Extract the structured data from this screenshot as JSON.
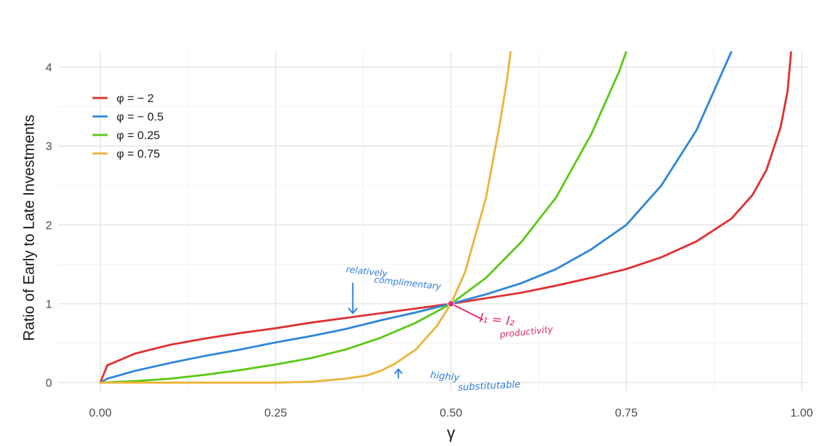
{
  "chart_data": {
    "type": "line",
    "xlabel": "γ",
    "ylabel": "Ratio of Early to Late Investments",
    "xlim": [
      -0.06,
      1.01
    ],
    "ylim": [
      -0.1,
      4.2
    ],
    "xticks": [
      0.0,
      0.25,
      0.5,
      0.75,
      1.0
    ],
    "xtick_labels": [
      "0.00",
      "0.25",
      "0.50",
      "0.75",
      "1.00"
    ],
    "yticks": [
      0,
      1,
      2,
      3,
      4
    ],
    "ytick_labels": [
      "0",
      "1",
      "2",
      "3",
      "4"
    ],
    "grid": true,
    "legend_position": "top-left",
    "series": [
      {
        "name": "φ =  − 2",
        "color": "#e03131",
        "x": [
          0.0,
          0.01,
          0.05,
          0.1,
          0.15,
          0.2,
          0.25,
          0.3,
          0.35,
          0.4,
          0.45,
          0.5,
          0.55,
          0.6,
          0.65,
          0.7,
          0.75,
          0.8,
          0.85,
          0.9,
          0.93,
          0.95,
          0.97,
          0.98,
          0.985
        ],
        "y": [
          0.0,
          0.22,
          0.37,
          0.48,
          0.56,
          0.63,
          0.69,
          0.76,
          0.82,
          0.88,
          0.94,
          1.0,
          1.07,
          1.14,
          1.23,
          1.33,
          1.44,
          1.59,
          1.79,
          2.08,
          2.38,
          2.7,
          3.24,
          3.7,
          4.2
        ]
      },
      {
        "name": "φ =  − 0.5",
        "color": "#2f88db",
        "x": [
          0.0,
          0.01,
          0.05,
          0.1,
          0.15,
          0.2,
          0.25,
          0.3,
          0.35,
          0.4,
          0.45,
          0.5,
          0.55,
          0.6,
          0.65,
          0.7,
          0.75,
          0.8,
          0.85,
          0.88,
          0.9
        ],
        "y": [
          0.0,
          0.05,
          0.15,
          0.25,
          0.34,
          0.42,
          0.51,
          0.59,
          0.68,
          0.79,
          0.89,
          1.0,
          1.12,
          1.26,
          1.44,
          1.69,
          2.0,
          2.5,
          3.2,
          3.8,
          4.2
        ]
      },
      {
        "name": "φ = 0.25",
        "color": "#5cc917",
        "x": [
          0.0,
          0.05,
          0.1,
          0.15,
          0.2,
          0.25,
          0.3,
          0.35,
          0.4,
          0.45,
          0.5,
          0.55,
          0.6,
          0.65,
          0.7,
          0.72,
          0.74,
          0.75
        ],
        "y": [
          0.0,
          0.02,
          0.05,
          0.1,
          0.16,
          0.23,
          0.31,
          0.42,
          0.57,
          0.76,
          1.0,
          1.33,
          1.78,
          2.35,
          3.15,
          3.55,
          3.95,
          4.2
        ]
      },
      {
        "name": "φ = 0.75",
        "color": "#ecb43a",
        "x": [
          0.0,
          0.1,
          0.2,
          0.25,
          0.3,
          0.35,
          0.38,
          0.4,
          0.42,
          0.45,
          0.48,
          0.5,
          0.52,
          0.55,
          0.57,
          0.58,
          0.585
        ],
        "y": [
          0.0,
          0.0,
          0.0,
          0.0,
          0.01,
          0.05,
          0.09,
          0.15,
          0.24,
          0.42,
          0.72,
          1.0,
          1.4,
          2.35,
          3.3,
          3.85,
          4.2
        ]
      }
    ],
    "annotations": [
      {
        "text": "relatively",
        "x": 0.35,
        "y": 1.4,
        "color": "#2f7fe0"
      },
      {
        "text": "complimentary",
        "x": 0.39,
        "y": 1.27,
        "color": "#2f7fe0"
      },
      {
        "text": "highly",
        "x": 0.47,
        "y": 0.06,
        "color": "#2f7fe0"
      },
      {
        "text": "substitutable",
        "x": 0.51,
        "y": -0.1,
        "color": "#2f7fe0"
      },
      {
        "text": "I₁ = I₂",
        "x": 0.54,
        "y": 0.77,
        "color": "#e0296f"
      },
      {
        "text": "productivity",
        "x": 0.57,
        "y": 0.57,
        "color": "#e0296f"
      }
    ],
    "highlight_point": {
      "x": 0.5,
      "y": 1.0,
      "color": "#e0296f"
    }
  }
}
